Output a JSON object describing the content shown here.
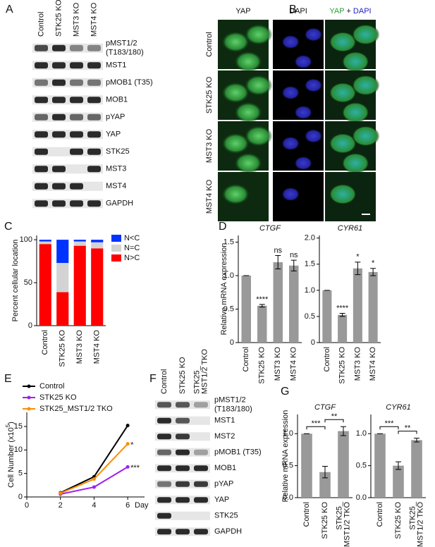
{
  "panel_labels": [
    "A",
    "B",
    "C",
    "D",
    "E",
    "F",
    "G"
  ],
  "blot_a": {
    "lanes": [
      "Control",
      "STK25 KO",
      "MST3 KO",
      "MST4 KO"
    ],
    "rows": [
      [
        "pMST1/2",
        "(T183/180)"
      ],
      [
        "MST1"
      ],
      [
        "pMOB1 (T35)"
      ],
      [
        "MOB1"
      ],
      [
        "pYAP"
      ],
      [
        "YAP"
      ],
      [
        "STK25"
      ],
      [
        "MST3"
      ],
      [
        "MST4"
      ],
      [
        "GAPDH"
      ]
    ]
  },
  "microscopy_b": {
    "columns": [
      "YAP",
      "DAPI"
    ],
    "merge_header": [
      "YAP",
      "+",
      "DAPI"
    ],
    "rows": [
      "Control",
      "STK25 KO",
      "MST3 KO",
      "MST4 KO"
    ]
  },
  "blot_f": {
    "lanes": [
      [
        "Control"
      ],
      [
        "STK25 KO"
      ],
      [
        "STK25_",
        "MST1/2 TKO"
      ]
    ],
    "rows": [
      [
        "pMST1/2",
        "(T183/180)"
      ],
      [
        "MST1"
      ],
      [
        "MST2"
      ],
      [
        "pMOB1 (T35)"
      ],
      [
        "MOB1"
      ],
      [
        "pYAP"
      ],
      [
        "YAP"
      ],
      [
        "STK25"
      ],
      [
        "GAPDH"
      ]
    ]
  },
  "chart_data": [
    {
      "type": "stacked_bar",
      "y_label": "Percent cellular location",
      "categories": [
        "Control",
        "STK25 KO",
        "MST3 KO",
        "MST4 KO"
      ],
      "series": [
        {
          "name": "N>C",
          "color": "#ff0000",
          "values": [
            95,
            39,
            93,
            90
          ]
        },
        {
          "name": "N=C",
          "color": "#d3d3d3",
          "values": [
            3,
            34,
            5,
            7
          ]
        },
        {
          "name": "N<C",
          "color": "#0033ff",
          "values": [
            2,
            27,
            2,
            3
          ]
        }
      ],
      "ylim": [
        0,
        105
      ],
      "yticks": [
        0,
        50,
        100
      ],
      "legend": "right"
    },
    {
      "type": "bar",
      "title": "CTGF",
      "y_label": "Relative mRNA expression",
      "categories": [
        "Control",
        "STK25 KO",
        "MST3 KO",
        "MST4 KO"
      ],
      "values": [
        1.0,
        0.55,
        1.2,
        1.15
      ],
      "errors": [
        0,
        0.02,
        0.1,
        0.08
      ],
      "annotations": [
        null,
        "****",
        "ns",
        "ns"
      ],
      "color": "#999999",
      "ylim": [
        0,
        1.6
      ],
      "yticks": [
        0,
        0.5,
        {
          "value": 1,
          "label": "1.0"
        },
        1.5
      ]
    },
    {
      "type": "bar",
      "title": "CYR61",
      "categories": [
        "Control",
        "STK25 KO",
        "MST3 KO",
        "MST4 KO"
      ],
      "values": [
        1.0,
        0.53,
        1.42,
        1.35
      ],
      "errors": [
        0,
        0.03,
        0.12,
        0.07
      ],
      "annotations": [
        null,
        "****",
        "*",
        "*"
      ],
      "color": "#999999",
      "ylim": [
        0,
        2.05
      ],
      "yticks": [
        0,
        0.5,
        {
          "value": 1,
          "label": "1.0"
        },
        1.5,
        {
          "value": 2,
          "label": "2.0"
        }
      ]
    },
    {
      "type": "line",
      "y_label": [
        "Cell Number (x10",
        "5",
        ")"
      ],
      "x_label": "Day",
      "x": [
        2,
        4,
        6
      ],
      "series": [
        {
          "name": "Control",
          "color": "#000000",
          "values": [
            0.9,
            4.3,
            15.2
          ]
        },
        {
          "name": "STK25 KO",
          "color": "#a020f0",
          "values": [
            0.6,
            2.1,
            6.4
          ]
        },
        {
          "name": "STK25_MST1/2 TKO",
          "color": "#ff8c00",
          "values": [
            0.8,
            3.8,
            11.3
          ]
        }
      ],
      "annotations": [
        {
          "series": "STK25_MST1/2 TKO",
          "label": "*"
        },
        {
          "series": "STK25 KO",
          "label": "***"
        }
      ],
      "xlim": [
        0,
        7
      ],
      "xticks": [
        0,
        2,
        4,
        6
      ],
      "ylim": [
        0,
        18
      ],
      "yticks": [
        0,
        5,
        10,
        15
      ]
    },
    {
      "type": "bar",
      "title": "CTGF",
      "y_label": "Relative mRNA expression",
      "categories": [
        "Control",
        "STK25 KO",
        [
          "STK25_",
          "MST1/2 TKO"
        ]
      ],
      "values": [
        1.0,
        0.4,
        1.04
      ],
      "errors": [
        0,
        0.09,
        0.07
      ],
      "color": "#999999",
      "comparisons": [
        {
          "pair": [
            0,
            1
          ],
          "label": "***"
        },
        {
          "pair": [
            1,
            2
          ],
          "label": "**"
        }
      ],
      "ylim": [
        0,
        1.3
      ],
      "yticks": [
        {
          "value": 0,
          "label": "0.0"
        },
        0.5,
        {
          "value": 1,
          "label": "1.0"
        }
      ]
    },
    {
      "type": "bar",
      "title": "CYR61",
      "categories": [
        "Control",
        "STK25 KO",
        [
          "STK25_",
          "MST1/2 TKO"
        ]
      ],
      "values": [
        1.0,
        0.5,
        0.9
      ],
      "errors": [
        0,
        0.06,
        0.03
      ],
      "color": "#999999",
      "comparisons": [
        {
          "pair": [
            0,
            1
          ],
          "label": "***"
        },
        {
          "pair": [
            1,
            2
          ],
          "label": "**"
        }
      ],
      "ylim": [
        0,
        1.3
      ],
      "yticks": [
        {
          "value": 0,
          "label": "0.0"
        },
        0.5,
        {
          "value": 1,
          "label": "1.0"
        }
      ]
    }
  ]
}
